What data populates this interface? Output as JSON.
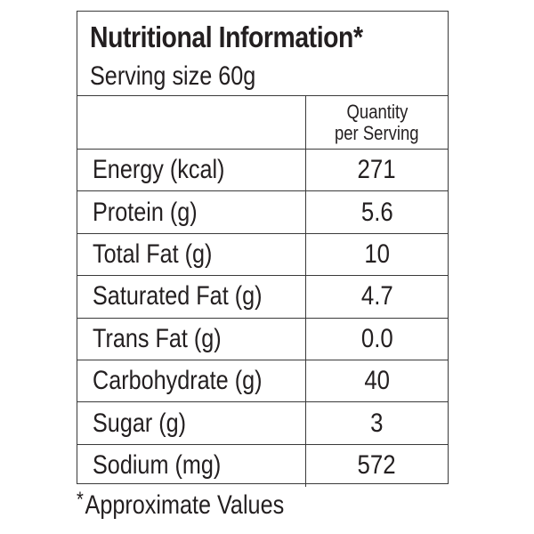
{
  "panel": {
    "title": "Nutritional Information*",
    "serving_size": "Serving size 60g",
    "column_header": {
      "line1": "Quantity",
      "line2": "per Serving"
    },
    "rows": [
      {
        "label": "Energy (kcal)",
        "value": "271"
      },
      {
        "label": "Protein (g)",
        "value": "5.6"
      },
      {
        "label": "Total Fat (g)",
        "value": "10"
      },
      {
        "label": "Saturated Fat (g)",
        "value": "4.7"
      },
      {
        "label": "Trans Fat (g)",
        "value": "0.0"
      },
      {
        "label": "Carbohydrate (g)",
        "value": "40"
      },
      {
        "label": "Sugar (g)",
        "value": "3"
      },
      {
        "label": "Sodium (mg)",
        "value": "572"
      }
    ]
  },
  "footnote": {
    "star": "*",
    "text": "Approximate Values"
  }
}
